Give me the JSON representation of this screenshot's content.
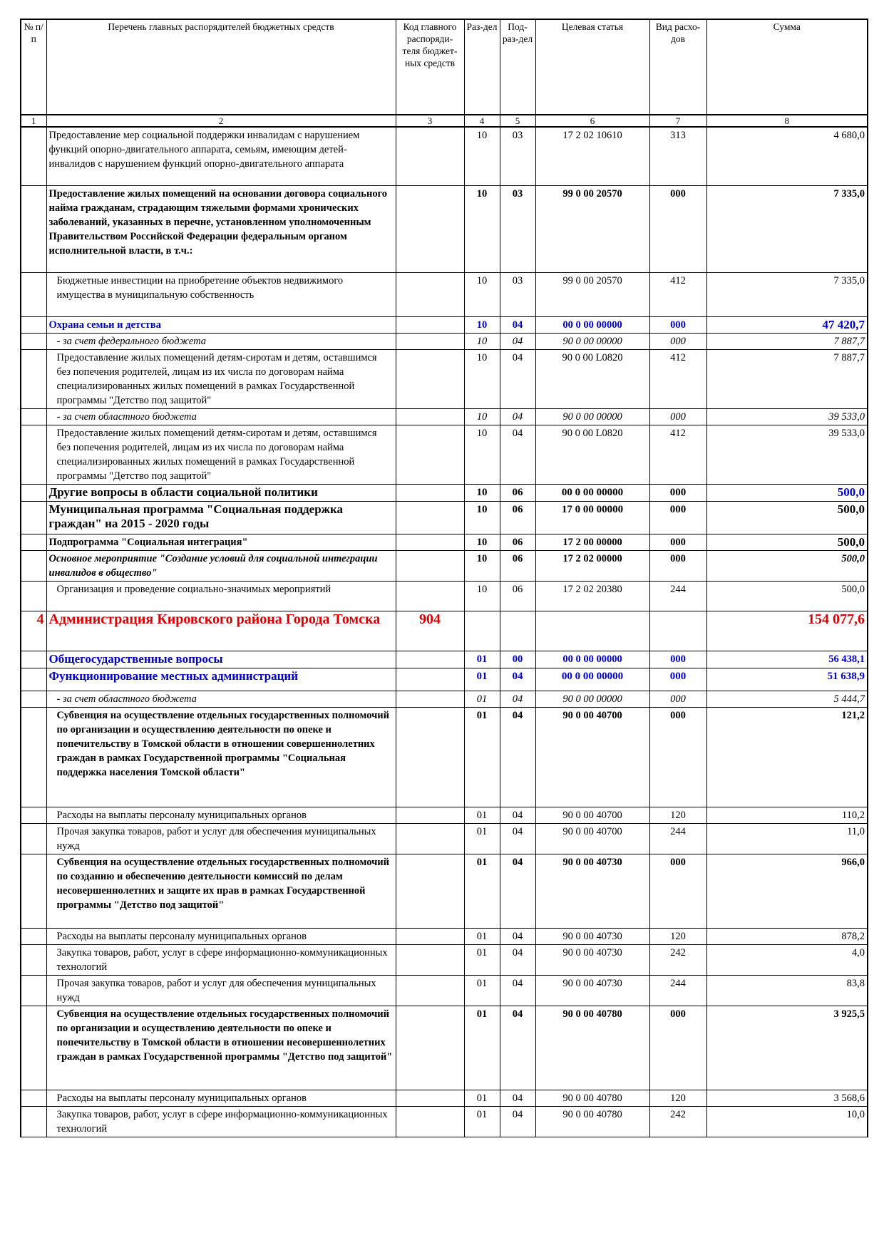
{
  "header": {
    "col1": "№ п/п",
    "col2": "Перечень главных распорядителей бюджетных средств",
    "col3": "Код главного распоряди-теля бюджет-ных средств",
    "col4": "Раз-дел",
    "col5": "Под-раз-дел",
    "col6": "Целевая статья",
    "col7": "Вид расхо-дов",
    "col8": "Сумма"
  },
  "colnums": [
    "1",
    "2",
    "3",
    "4",
    "5",
    "6",
    "7",
    "8"
  ],
  "rows": [
    {
      "name": "Предоставление мер социальной поддержки инвалидам с нарушением функций опорно-двигательного аппарата, семьям, имеющим детей-инвалидов с нарушением функций опорно-двигательного аппарата",
      "razdel": "10",
      "podrazdel": "03",
      "statya": "17 2 02 10610",
      "vid": "313",
      "summa": "4 680,0"
    },
    {
      "name": "Предоставление жилых помещений на основании договора социального найма гражданам, страдающим тяжелыми формами хронических заболеваний, указанных в перечне, установленном уполномоченным Правительством Российской Федерации федеральным органом исполнительной власти, в т.ч.:",
      "razdel": "10",
      "podrazdel": "03",
      "statya": "99 0 00 20570",
      "vid": "000",
      "summa": "7 335,0"
    },
    {
      "name": "Бюджетные инвестиции на приобретение объектов недвижимого имущества в муниципальную собственность",
      "razdel": "10",
      "podrazdel": "03",
      "statya": "99 0 00 20570",
      "vid": "412",
      "summa": "7 335,0"
    },
    {
      "name": "Охрана семьи и детства",
      "razdel": "10",
      "podrazdel": "04",
      "statya": "00 0 00 00000",
      "vid": "000",
      "summa": "47 420,7"
    },
    {
      "name": "- за счет федерального бюджета",
      "razdel": "10",
      "podrazdel": "04",
      "statya": "90 0 00 00000",
      "vid": "000",
      "summa": "7 887,7"
    },
    {
      "name": "Предоставление жилых помещений детям-сиротам и детям, оставшимся без попечения родителей, лицам из их числа по договорам найма специализированных жилых помещений в рамках Государственной программы \"Детство под защитой\"",
      "razdel": "10",
      "podrazdel": "04",
      "statya": "90 0 00 L0820",
      "vid": "412",
      "summa": "7 887,7"
    },
    {
      "name": "- за счет областного бюджета",
      "razdel": "10",
      "podrazdel": "04",
      "statya": "90 0 00 00000",
      "vid": "000",
      "summa": "39 533,0"
    },
    {
      "name": "Предоставление жилых помещений детям-сиротам и детям, оставшимся без попечения родителей, лицам из их числа по договорам найма специализированных жилых помещений в рамках Государственной программы \"Детство под защитой\"",
      "razdel": "10",
      "podrazdel": "04",
      "statya": "90 0 00 L0820",
      "vid": "412",
      "summa": "39 533,0"
    },
    {
      "name": "Другие вопросы в области социальной политики",
      "razdel": "10",
      "podrazdel": "06",
      "statya": "00 0 00 00000",
      "vid": "000",
      "summa": "500,0"
    },
    {
      "name": "Муниципальная программа \"Социальная поддержка граждан\" на 2015 - 2020 годы",
      "razdel": "10",
      "podrazdel": "06",
      "statya": "17 0 00 00000",
      "vid": "000",
      "summa": "500,0"
    },
    {
      "name": "Подпрограмма \"Социальная интеграция\"",
      "razdel": "10",
      "podrazdel": "06",
      "statya": "17 2 00 00000",
      "vid": "000",
      "summa": "500,0"
    },
    {
      "name": "Основное мероприятие \"Создание условий для социальной интеграции инвалидов в общество\"",
      "razdel": "10",
      "podrazdel": "06",
      "statya": "17 2 02 00000",
      "vid": "000",
      "summa": "500,0"
    },
    {
      "name": "Организация и проведение социально-значимых мероприятий",
      "razdel": "10",
      "podrazdel": "06",
      "statya": "17 2 02 20380",
      "vid": "244",
      "summa": "500,0"
    },
    {
      "num": "4",
      "name": "Администрация Кировского района Города Томска",
      "kod": "904",
      "summa": "154 077,6"
    },
    {
      "name": "Общегосударственные вопросы",
      "razdel": "01",
      "podrazdel": "00",
      "statya": "00 0 00 00000",
      "vid": "000",
      "summa": "56 438,1"
    },
    {
      "name": "Функционирование местных администраций",
      "razdel": "01",
      "podrazdel": "04",
      "statya": "00 0 00 00000",
      "vid": "000",
      "summa": "51 638,9"
    },
    {
      "name": "- за счет областного бюджета",
      "razdel": "01",
      "podrazdel": "04",
      "statya": "90 0 00 00000",
      "vid": "000",
      "summa": "5 444,7"
    },
    {
      "name": "Субвенция на осуществление отдельных государственных полномочий по организации и осуществлению деятельности по опеке и попечительству в Томской области в отношении совершеннолетних граждан в рамках Государственной программы \"Социальная поддержка населения Томской области\"",
      "razdel": "01",
      "podrazdel": "04",
      "statya": "90 0 00 40700",
      "vid": "000",
      "summa": "121,2"
    },
    {
      "name": "Расходы на выплаты персоналу муниципальных органов",
      "razdel": "01",
      "podrazdel": "04",
      "statya": "90 0 00 40700",
      "vid": "120",
      "summa": "110,2"
    },
    {
      "name": "Прочая закупка товаров, работ и услуг для обеспечения муниципальных нужд",
      "razdel": "01",
      "podrazdel": "04",
      "statya": "90 0 00 40700",
      "vid": "244",
      "summa": "11,0"
    },
    {
      "name": "Субвенция на осуществление отдельных государственных полномочий по созданию и обеспечению деятельности комиссий по делам несовершеннолетних и защите их прав в рамках Государственной программы \"Детство под защитой\"",
      "razdel": "01",
      "podrazdel": "04",
      "statya": "90 0 00 40730",
      "vid": "000",
      "summa": "966,0"
    },
    {
      "name": "Расходы на выплаты персоналу муниципальных органов",
      "razdel": "01",
      "podrazdel": "04",
      "statya": "90 0 00 40730",
      "vid": "120",
      "summa": "878,2"
    },
    {
      "name": "Закупка товаров, работ, услуг в сфере информационно-коммуникационных технологий",
      "razdel": "01",
      "podrazdel": "04",
      "statya": "90 0 00 40730",
      "vid": "242",
      "summa": "4,0"
    },
    {
      "name": "Прочая закупка товаров, работ и услуг для обеспечения муниципальных нужд",
      "razdel": "01",
      "podrazdel": "04",
      "statya": "90 0 00 40730",
      "vid": "244",
      "summa": "83,8"
    },
    {
      "name": "Субвенция на осуществление отдельных государственных полномочий по организации и осуществлению деятельности по опеке и попечительству в Томской области в отношении несовершеннолетних граждан в рамках Государственной программы \"Детство под защитой\"",
      "razdel": "01",
      "podrazdel": "04",
      "statya": "90 0 00 40780",
      "vid": "000",
      "summa": "3 925,5"
    },
    {
      "name": "Расходы на выплаты персоналу муниципальных органов",
      "razdel": "01",
      "podrazdel": "04",
      "statya": "90 0 00 40780",
      "vid": "120",
      "summa": "3 568,6"
    },
    {
      "name": "Закупка товаров, работ, услуг в сфере информационно-коммуникационных технологий",
      "razdel": "01",
      "podrazdel": "04",
      "statya": "90 0 00 40780",
      "vid": "242",
      "summa": "10,0"
    }
  ]
}
